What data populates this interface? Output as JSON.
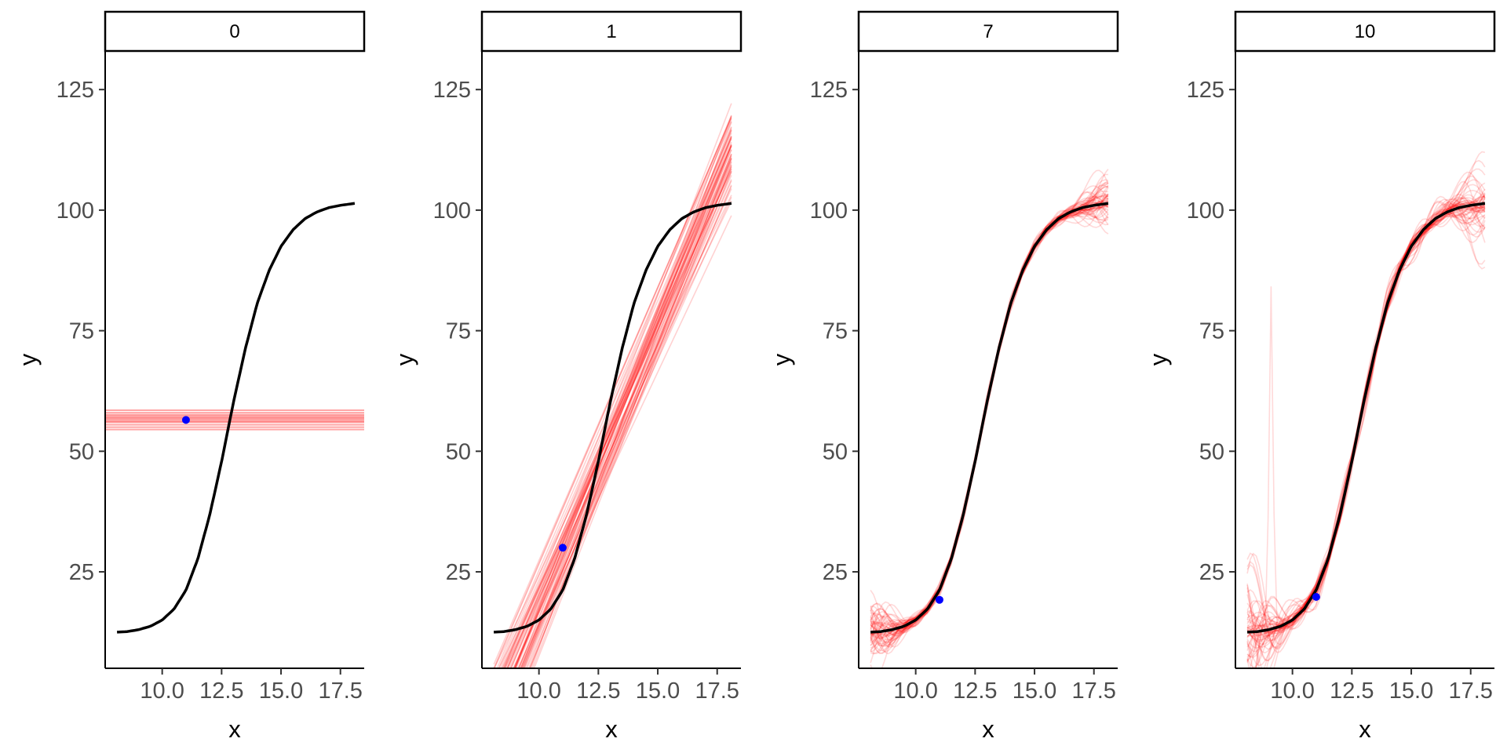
{
  "chart_data": {
    "type": "line",
    "facets": [
      "0",
      "1",
      "7",
      "10"
    ],
    "xlabel": "x",
    "ylabel": "y",
    "xlim": [
      7.6,
      18.5
    ],
    "ylim": [
      5,
      133
    ],
    "x_ticks": [
      "10.0",
      "12.5",
      "15.0",
      "17.5"
    ],
    "x_tick_values": [
      10.0,
      12.5,
      15.0,
      17.5
    ],
    "y_ticks": [
      "25",
      "50",
      "75",
      "100",
      "125"
    ],
    "y_tick_values": [
      25,
      50,
      75,
      100,
      125
    ],
    "grid": false,
    "true_curve": {
      "color": "#000000",
      "x": [
        8.1,
        8.5,
        9.0,
        9.5,
        10.0,
        10.5,
        11.0,
        11.5,
        12.0,
        12.5,
        13.0,
        13.5,
        14.0,
        14.5,
        15.0,
        15.5,
        16.0,
        16.5,
        17.0,
        17.5,
        18.1
      ],
      "y": [
        12.5,
        12.6,
        13.0,
        13.7,
        15.0,
        17.3,
        21.2,
        27.7,
        36.8,
        47.9,
        60.2,
        71.3,
        80.7,
        87.5,
        92.5,
        95.9,
        98.2,
        99.6,
        100.5,
        101.0,
        101.4
      ]
    },
    "ensemble_color": "#ff0000",
    "ensemble_sizes": [
      12,
      60,
      60,
      60
    ],
    "points": [
      {
        "facet": "0",
        "x": 11.0,
        "y": 56.5,
        "color": "#0000ff"
      },
      {
        "facet": "1",
        "x": 11.0,
        "y": 30.0,
        "color": "#0000ff"
      },
      {
        "facet": "7",
        "x": 11.0,
        "y": 19.2,
        "color": "#0000ff"
      },
      {
        "facet": "10",
        "x": 11.0,
        "y": 19.8,
        "color": "#0000ff"
      }
    ],
    "degree0_levels": [
      54.5,
      55.0,
      55.5,
      56.0,
      56.2,
      56.5,
      56.8,
      57.0,
      57.3,
      57.6,
      58.0,
      58.5
    ],
    "degree1_fit": {
      "x": [
        8.1,
        18.1
      ],
      "y_center": [
        -4,
        112
      ],
      "y_spread": [
        6,
        5
      ]
    }
  }
}
